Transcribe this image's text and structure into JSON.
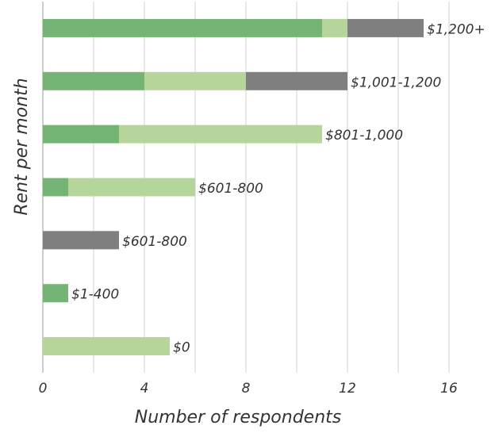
{
  "chart_data": {
    "type": "hbar_stacked",
    "xlabel": "Number of respondents",
    "ylabel": "Rent per month",
    "categories": [
      "$1,200+",
      "$1,001-1,200",
      "$801-1,000",
      "$601-800",
      "$601-800",
      "$1-400",
      "$0"
    ],
    "series": [
      {
        "color": "#74b474",
        "values": [
          11,
          4,
          3,
          1,
          0,
          1,
          0
        ]
      },
      {
        "color": "#b5d59a",
        "values": [
          1,
          4,
          8,
          5,
          0,
          0,
          5
        ]
      },
      {
        "color": "#7f7f7f",
        "values": [
          3,
          4,
          0,
          0,
          3,
          0,
          0
        ]
      }
    ],
    "xlim": [
      0,
      17
    ],
    "xticks": [
      0,
      4,
      8,
      12,
      16
    ],
    "minor_xticks": [
      2,
      6,
      10,
      14
    ],
    "grid": true
  }
}
